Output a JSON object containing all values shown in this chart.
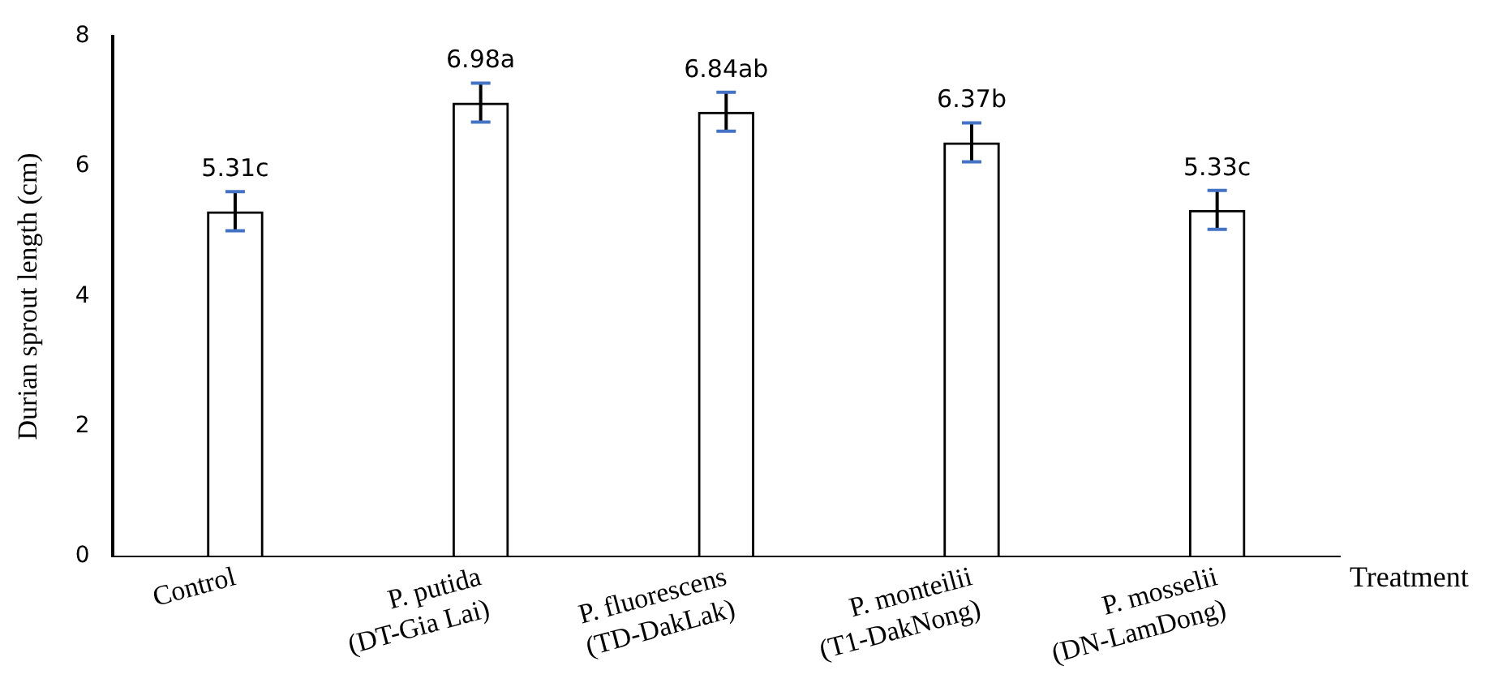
{
  "chart_data": {
    "type": "bar",
    "ylabel": "Durian sprout length (cm)",
    "xlabel": "Treatment",
    "categories": [
      "Control",
      "P. putida\n(DT-Gia Lai)",
      "P. fluorescens\n(TD-DakLak)",
      "P. monteilii\n(T1-DakNong)",
      "P. mosselii\n(DN-LamDong)"
    ],
    "values": [
      5.31,
      6.98,
      6.84,
      6.37,
      5.33
    ],
    "errors": [
      0.3,
      0.3,
      0.3,
      0.3,
      0.3
    ],
    "value_labels": [
      "5.31c",
      "6.98a",
      "6.84ab",
      "6.37b",
      "5.33c"
    ],
    "color": "#000000",
    "ylim": [
      0,
      8
    ],
    "yticks": [
      0,
      2,
      4,
      6,
      8
    ],
    "grid": false,
    "legend": false
  }
}
